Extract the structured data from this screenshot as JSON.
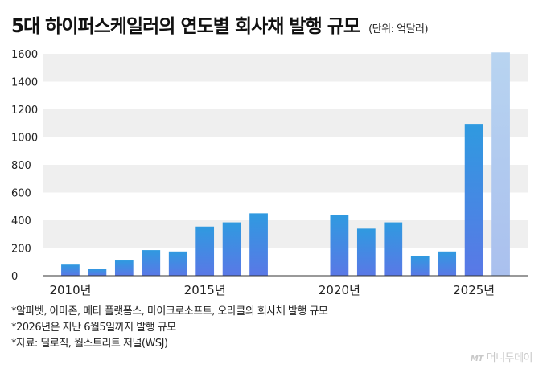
{
  "header": {
    "title": "5대 하이퍼스케일러의 연도별 회사채 발행 규모",
    "unit": "(단위: 억달러)"
  },
  "chart_data": {
    "type": "bar",
    "x": [
      2010,
      2011,
      2012,
      2013,
      2014,
      2015,
      2016,
      2017,
      2020,
      2021,
      2022,
      2023,
      2024,
      2025,
      2026
    ],
    "values": [
      80,
      50,
      110,
      185,
      175,
      355,
      385,
      450,
      440,
      340,
      385,
      140,
      175,
      1095,
      1610
    ],
    "x_ticks": [
      "2010년",
      "2015년",
      "2020년",
      "2025년"
    ],
    "y_ticks": [
      0,
      200,
      400,
      600,
      800,
      1000,
      1200,
      1400,
      1600
    ],
    "xlim": [
      2009,
      2027
    ],
    "ylim": [
      0,
      1600
    ],
    "highlight_last": true,
    "grid": "horizontal-bands",
    "colors": {
      "bar_top": "#2f9ae0",
      "bar_bottom": "#5a78e6",
      "last_top": "#b8d4f0",
      "last_bottom": "#aac0ee",
      "band": "#efefef"
    }
  },
  "notes": [
    "*알파벳, 아마존, 메타 플랫폼스, 마이크로소프트, 오라클의 회사채 발행 규모",
    "*2026년은 지난 6월5일까지 발행 규모",
    "*자료: 딜로직, 월스트리트 저널(WSJ)"
  ],
  "logo": {
    "mark": "MT",
    "name": "머니투데이"
  }
}
